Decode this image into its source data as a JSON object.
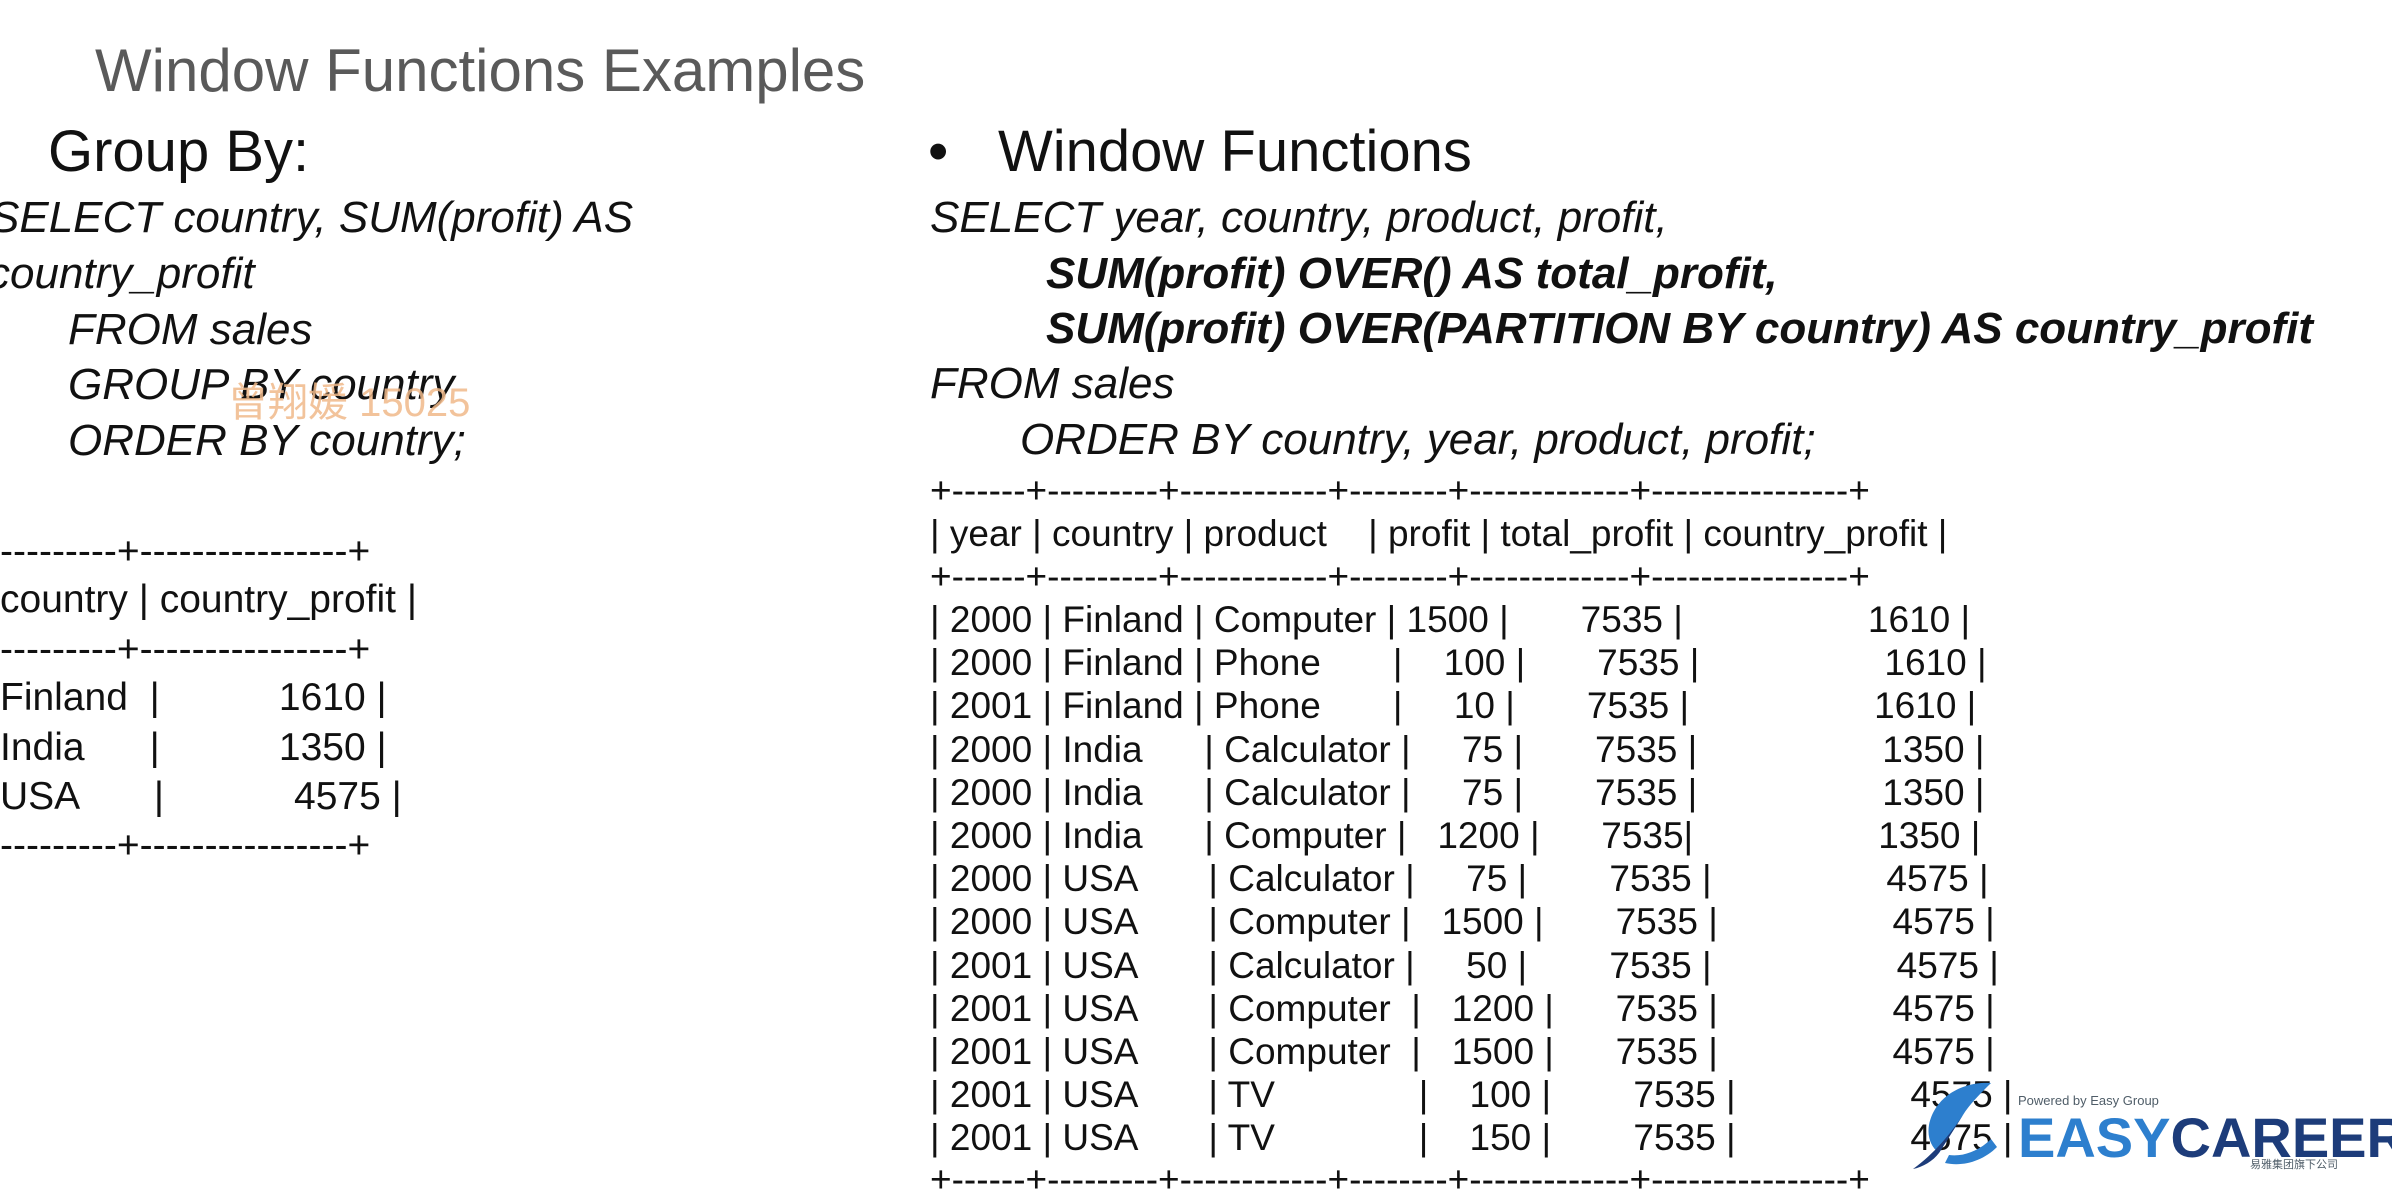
{
  "title": "Window Functions Examples",
  "group_by": {
    "heading": "Group By:",
    "sql": [
      "SELECT country, SUM(profit) AS",
      "country_profit",
      "FROM sales",
      "GROUP BY country",
      "ORDER BY country;"
    ],
    "table": {
      "border": "---------+----------------+",
      "header": "country | country_profit |",
      "rows": [
        "Finland  |           1610 |",
        "India      |           1350 |",
        "USA       |            4575 |"
      ]
    },
    "watermark": "曾翔媛 15025"
  },
  "window": {
    "bullet": "•",
    "heading": "Window Functions",
    "sql": [
      "SELECT year, country, product, profit,",
      "SUM(profit) OVER() AS total_profit,",
      "SUM(profit) OVER(PARTITION BY country) AS country_profit",
      "FROM sales",
      "ORDER BY country, year, product, profit;"
    ],
    "table": {
      "border": "+------+---------+------------+--------+-------------+----------------+",
      "header": "| year | country | product    | profit | total_profit | country_profit |",
      "rows": [
        "| 2000 | Finland | Computer | 1500 |       7535 |                  1610 |",
        "| 2000 | Finland | Phone       |    100 |       7535 |                  1610 |",
        "| 2001 | Finland | Phone       |     10 |       7535 |                  1610 |",
        "| 2000 | India      | Calculator |     75 |       7535 |                  1350 |",
        "| 2000 | India      | Calculator |     75 |       7535 |                  1350 |",
        "| 2000 | India      | Computer |   1200 |      7535|                  1350 |",
        "| 2000 | USA       | Calculator |     75 |        7535 |                 4575 |",
        "| 2000 | USA       | Computer |   1500 |       7535 |                 4575 |",
        "| 2001 | USA       | Calculator |     50 |        7535 |                  4575 |",
        "| 2001 | USA       | Computer  |   1200 |      7535 |                 4575 |",
        "| 2001 | USA       | Computer  |   1500 |      7535 |                 4575 |",
        "| 2001 | USA       | TV              |    100 |        7535 |                 4575 |",
        "| 2001 | USA       | TV              |    150 |        7535 |                 4575 |"
      ]
    }
  },
  "logo": {
    "powered": "Powered by Easy Group",
    "brand_part1": "EASY",
    "brand_part2": "CAREER",
    "subtext": "易雅集团旗下公司",
    "colors": {
      "blue": "#2d7fce",
      "navy": "#1d3c7a"
    },
    "icon": "easycareer-logo-mark"
  }
}
